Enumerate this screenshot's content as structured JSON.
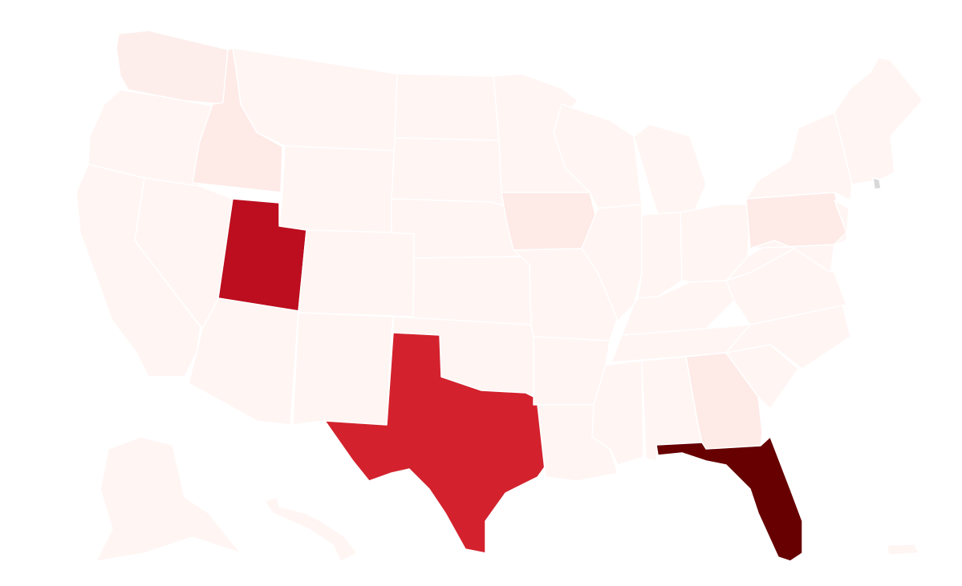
{
  "map": {
    "type": "choropleth",
    "region": "United States",
    "background": "#ffffff",
    "border_color": "#ffffff",
    "palette": {
      "lowest": "#fff5f3",
      "low": "#feeae6",
      "high": "#d3222d",
      "higher": "#bc0e1e",
      "highest": "#670000",
      "no_data": "#d9d9d9"
    },
    "fills": {
      "WA": "#fdeeeb",
      "OR": "#fff5f3",
      "CA": "#fff5f3",
      "NV": "#fff5f3",
      "ID": "#feeae6",
      "MT": "#fff5f3",
      "WY": "#fff5f3",
      "UT": "#bc0e1e",
      "CO": "#fff5f3",
      "AZ": "#fff5f3",
      "NM": "#fff5f3",
      "ND": "#fff5f3",
      "SD": "#fff5f3",
      "NE": "#fff5f3",
      "KS": "#fff5f3",
      "OK": "#fff5f3",
      "TX": "#d3222d",
      "MN": "#fff5f3",
      "IA": "#feeae6",
      "MO": "#fff5f3",
      "AR": "#fff5f3",
      "LA": "#fff5f3",
      "WI": "#fff5f3",
      "IL": "#fff5f3",
      "MI": "#fff5f3",
      "IN": "#fff5f3",
      "OH": "#fff5f3",
      "KY": "#fff5f3",
      "TN": "#fff5f3",
      "MS": "#fff5f3",
      "AL": "#fff5f3",
      "GA": "#feeae6",
      "FL": "#670000",
      "SC": "#fff5f3",
      "NC": "#fff5f3",
      "VA": "#fff5f3",
      "WV": "#fff5f3",
      "PA": "#feeae6",
      "NY": "#fff5f3",
      "NE_ENG": "#fff5f3",
      "NJ": "#fff5f3",
      "MD": "#fff5f3",
      "RI": "#d9d9d9",
      "AK": "#fff5f3",
      "HI": "#fff5f3",
      "PR": "#fff5f3"
    }
  }
}
